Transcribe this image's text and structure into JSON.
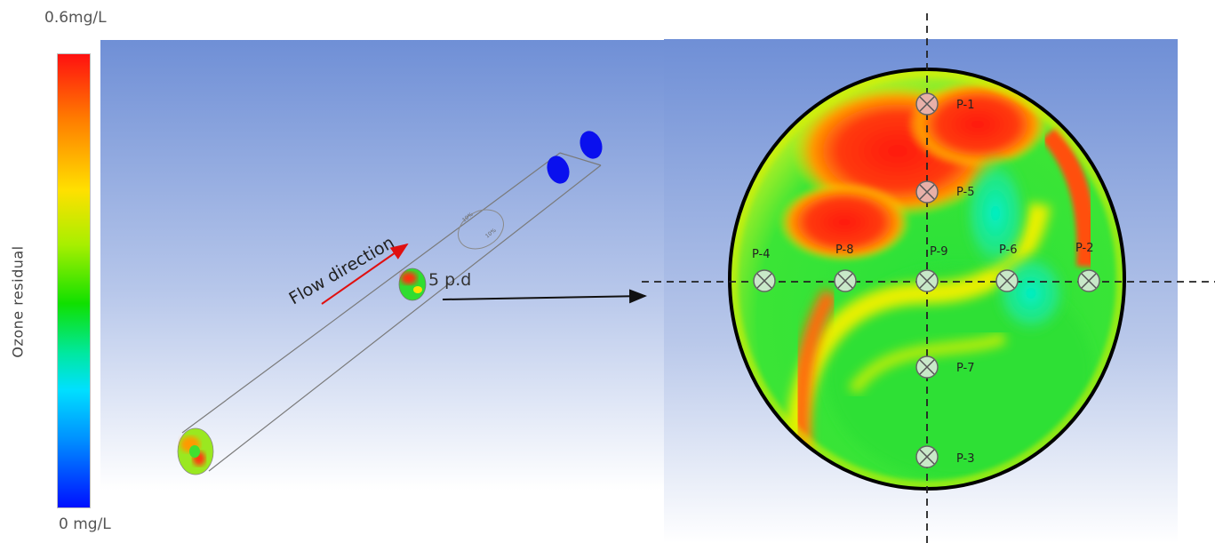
{
  "colorbar": {
    "max_label": "0.6mg/L",
    "min_label": "0 mg/L",
    "title": "Ozone residual",
    "colors": [
      "#ff1010",
      "#ff7a00",
      "#ffe000",
      "#10e000",
      "#00e0ff",
      "#0010ff"
    ]
  },
  "pipe_view": {
    "flow_label": "Flow direction",
    "section_label": "5 p.d",
    "inlet_labels": [
      "10%",
      "10%"
    ]
  },
  "cross_section": {
    "points": [
      "P-1",
      "P-2",
      "P-3",
      "P-4",
      "P-5",
      "P-6",
      "P-7",
      "P-8",
      "P-9"
    ]
  }
}
